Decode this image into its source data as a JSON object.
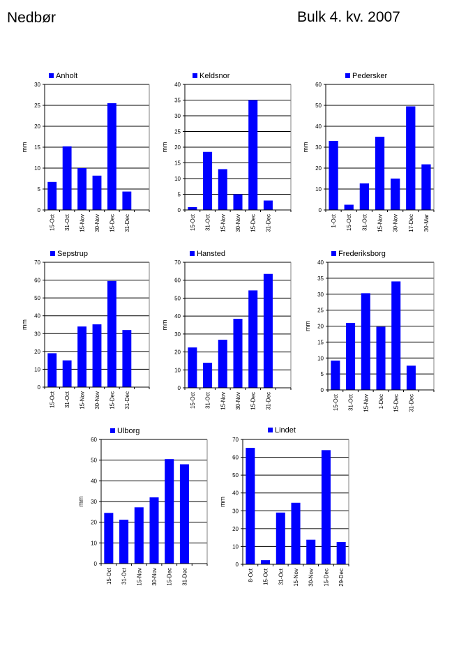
{
  "header": {
    "title": "Nedbør",
    "subtitle": "Bulk  4. kv. 2007"
  },
  "bar_color": "#0000ff",
  "chart_data": [
    {
      "type": "bar",
      "station": "Anholt",
      "series_name": "Anholt",
      "ylabel": "mm",
      "ylim": [
        0,
        30
      ],
      "yticks": [
        0,
        5,
        10,
        15,
        20,
        25,
        30
      ],
      "categories": [
        "15-Oct",
        "31-Oct",
        "15-Nov",
        "30-Nov",
        "15-Dec",
        "31-Dec"
      ],
      "values": [
        6.7,
        15.2,
        10.0,
        8.2,
        25.5,
        4.4
      ]
    },
    {
      "type": "bar",
      "station": "Keldsnor",
      "series_name": "Keldsnor",
      "ylabel": "mm",
      "ylim": [
        0,
        40
      ],
      "yticks": [
        0,
        5,
        10,
        15,
        20,
        25,
        30,
        35,
        40
      ],
      "categories": [
        "15-Oct",
        "31-Oct",
        "15-Nov",
        "30-Nov",
        "15-Dec",
        "31-Dec"
      ],
      "values": [
        0.9,
        18.5,
        13.0,
        5.0,
        35.0,
        3.0
      ]
    },
    {
      "type": "bar",
      "station": "Pedersker",
      "series_name": "Pedersker",
      "ylabel": "mm",
      "ylim": [
        0,
        60
      ],
      "yticks": [
        0,
        10,
        20,
        30,
        40,
        50,
        60
      ],
      "categories": [
        "1-Oct",
        "15-Oct",
        "31-Oct",
        "15-Nov",
        "30-Nov",
        "17-Dec",
        "30-Mar"
      ],
      "values": [
        33.0,
        2.5,
        12.7,
        35.0,
        15.0,
        49.5,
        21.8
      ]
    },
    {
      "type": "bar",
      "station": "Sepstrup",
      "series_name": "Sepstrup",
      "ylabel": "mm",
      "ylim": [
        0,
        70
      ],
      "yticks": [
        0,
        10,
        20,
        30,
        40,
        50,
        60,
        70
      ],
      "categories": [
        "15-Oct",
        "31-Oct",
        "15-Nov",
        "30-Nov",
        "15-Dec",
        "31-Dec"
      ],
      "values": [
        19.0,
        15.0,
        34.0,
        35.2,
        59.5,
        32.0
      ]
    },
    {
      "type": "bar",
      "station": "Hansted",
      "series_name": "Hansted",
      "ylabel": "mm",
      "ylim": [
        0,
        70
      ],
      "yticks": [
        0,
        10,
        20,
        30,
        40,
        50,
        60,
        70
      ],
      "categories": [
        "15-Oct",
        "31-Oct",
        "15-Nov",
        "30-Nov",
        "15-Dec",
        "31-Dec"
      ],
      "values": [
        22.5,
        14.0,
        26.8,
        38.5,
        54.3,
        63.5
      ]
    },
    {
      "type": "bar",
      "station": "Frederiksborg",
      "series_name": "Frederiksborg",
      "ylabel": "mm",
      "ylim": [
        0,
        40
      ],
      "yticks": [
        0,
        5,
        10,
        15,
        20,
        25,
        30,
        35,
        40
      ],
      "categories": [
        "15-Oct",
        "31-Oct",
        "15-Nov",
        "1-Dec",
        "15-Dec",
        "31-Dec"
      ],
      "values": [
        9.2,
        21.0,
        30.3,
        19.8,
        34.0,
        7.6
      ]
    },
    {
      "type": "bar",
      "station": "Ulborg",
      "series_name": "Ulborg",
      "ylabel": "mm",
      "ylim": [
        0,
        60
      ],
      "yticks": [
        0,
        10,
        20,
        30,
        40,
        50,
        60
      ],
      "categories": [
        "15-Oct",
        "31-Oct",
        "15-Nov",
        "30-Nov",
        "15-Dec",
        "31-Dec"
      ],
      "values": [
        24.5,
        21.2,
        27.2,
        32.0,
        50.5,
        48.0
      ]
    },
    {
      "type": "bar",
      "station": "Lindet",
      "series_name": "Lindet",
      "ylabel": "mm",
      "ylim": [
        0,
        70
      ],
      "yticks": [
        0,
        10,
        20,
        30,
        40,
        50,
        60,
        70
      ],
      "categories": [
        "8-Oct",
        "15-Oct",
        "31-Oct",
        "15-Nov",
        "30-Nov",
        "15-Dec",
        "29-Dec"
      ],
      "values": [
        65.3,
        2.3,
        29.0,
        34.5,
        13.8,
        64.0,
        12.5
      ]
    }
  ]
}
